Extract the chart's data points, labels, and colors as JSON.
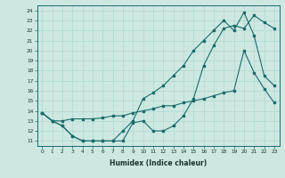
{
  "xlabel": "Humidex (Indice chaleur)",
  "ylabel": "",
  "bg_color": "#cde8e2",
  "line_color": "#1a6b6b",
  "grid_color": "#b0d8d0",
  "xlim": [
    -0.5,
    23.5
  ],
  "ylim": [
    10.5,
    24.5
  ],
  "xticks": [
    0,
    1,
    2,
    3,
    4,
    5,
    6,
    7,
    8,
    9,
    10,
    11,
    12,
    13,
    14,
    15,
    16,
    17,
    18,
    19,
    20,
    21,
    22,
    23
  ],
  "yticks": [
    11,
    12,
    13,
    14,
    15,
    16,
    17,
    18,
    19,
    20,
    21,
    22,
    23,
    24
  ],
  "line1_x": [
    0,
    1,
    2,
    3,
    4,
    5,
    6,
    7,
    8,
    9,
    10,
    11,
    12,
    13,
    14,
    15,
    16,
    17,
    18,
    19,
    20,
    21,
    22,
    23
  ],
  "line1_y": [
    13.8,
    13.0,
    12.5,
    11.5,
    11.0,
    11.0,
    11.0,
    11.0,
    11.0,
    12.8,
    13.0,
    12.0,
    12.0,
    12.5,
    13.5,
    15.2,
    18.5,
    20.5,
    22.2,
    22.5,
    22.2,
    23.5,
    22.8,
    22.2
  ],
  "line2_x": [
    0,
    1,
    2,
    3,
    4,
    5,
    6,
    7,
    8,
    9,
    10,
    11,
    12,
    13,
    14,
    15,
    16,
    17,
    18,
    19,
    20,
    21,
    22,
    23
  ],
  "line2_y": [
    13.8,
    13.0,
    12.5,
    11.5,
    11.0,
    11.0,
    11.0,
    11.0,
    12.0,
    13.0,
    15.2,
    15.8,
    16.5,
    17.5,
    18.5,
    20.0,
    21.0,
    22.0,
    23.0,
    22.0,
    23.8,
    21.5,
    17.5,
    16.5
  ],
  "line3_x": [
    0,
    1,
    2,
    3,
    4,
    5,
    6,
    7,
    8,
    9,
    10,
    11,
    12,
    13,
    14,
    15,
    16,
    17,
    18,
    19,
    20,
    21,
    22,
    23
  ],
  "line3_y": [
    13.8,
    13.0,
    13.0,
    13.2,
    13.2,
    13.2,
    13.3,
    13.5,
    13.5,
    13.8,
    14.0,
    14.2,
    14.5,
    14.5,
    14.8,
    15.0,
    15.2,
    15.5,
    15.8,
    16.0,
    20.0,
    17.8,
    16.2,
    14.8
  ]
}
